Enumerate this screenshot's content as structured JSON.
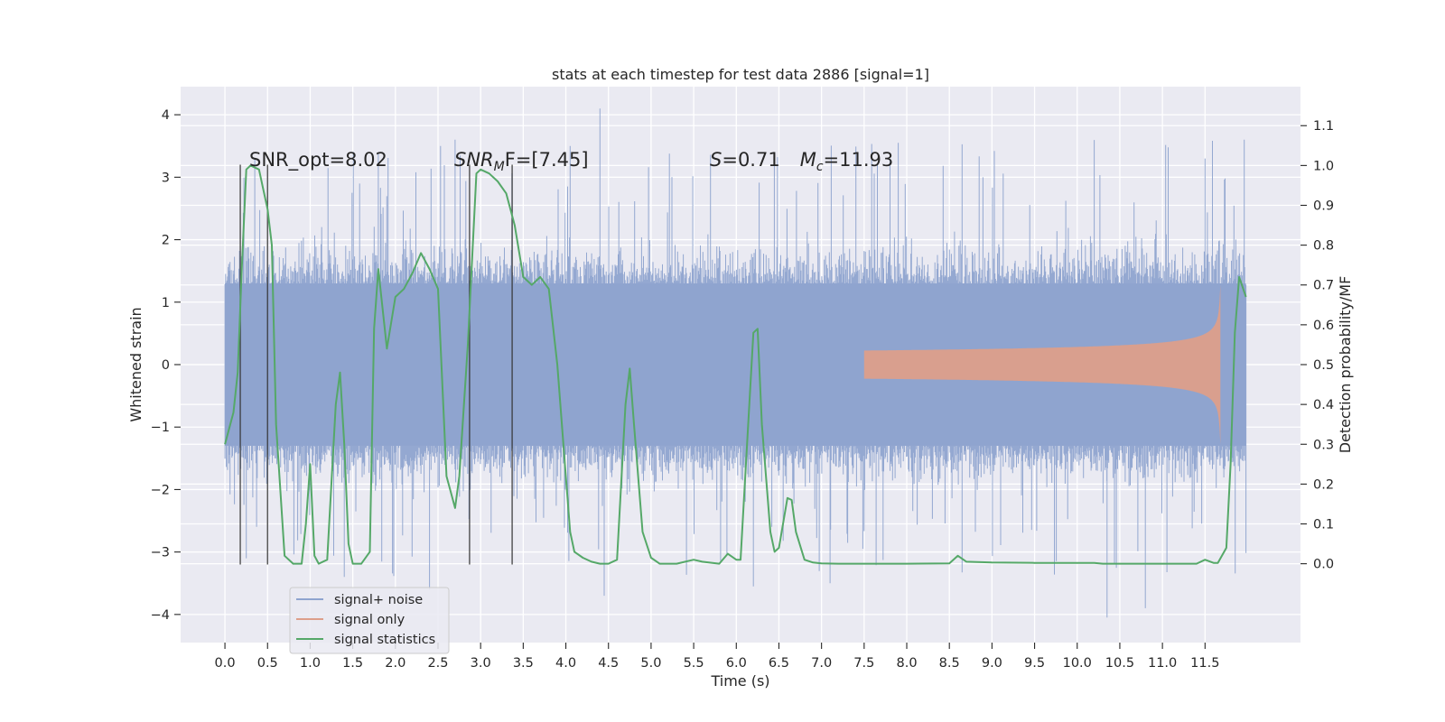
{
  "chart_data": {
    "type": "line",
    "title": "stats at each timestep for test data 2886 [signal=1]",
    "xlabel": "Time (s)",
    "ylabel": "Whitened strain",
    "y2label": "Detection probability/MF",
    "xlim": [
      -0.52,
      12.62
    ],
    "ylim": [
      -4.45,
      4.45
    ],
    "y2lim": [
      -0.198,
      1.198
    ],
    "x_ticks": [
      0.0,
      0.5,
      1.0,
      1.5,
      2.0,
      2.5,
      3.0,
      3.5,
      4.0,
      4.5,
      5.0,
      5.5,
      6.0,
      6.5,
      7.0,
      7.5,
      8.0,
      8.5,
      9.0,
      9.5,
      10.0,
      10.5,
      11.0,
      11.5
    ],
    "y_ticks": [
      4,
      3,
      2,
      1,
      0,
      -1,
      -2,
      -3,
      -4
    ],
    "y_tick_labels": [
      "4",
      "3",
      "2",
      "1",
      "0",
      "−1",
      "−2",
      "−3",
      "−4"
    ],
    "y2_ticks": [
      1.1,
      1.0,
      0.9,
      0.8,
      0.7,
      0.6,
      0.5,
      0.4,
      0.3,
      0.2,
      0.1,
      0.0
    ],
    "grid": true,
    "legend_position": "lower-left",
    "legend": [
      "signal+ noise",
      "signal only",
      "signal statistics"
    ],
    "annotations": {
      "snr_opt": "SNR_opt=8.02",
      "snr_mf_prefix": "SNR",
      "snr_mf_sub": "M",
      "snr_mf_suffix": "F=[7.45]",
      "s_sym": "S",
      "s_val": "=0.71",
      "mc_sym": "M",
      "mc_sub": "c",
      "mc_val": "=11.93"
    },
    "vertical_markers": [
      0.18,
      0.5,
      2.87,
      3.37
    ],
    "marker_range": [
      -3.2,
      3.2
    ],
    "series": [
      {
        "name": "signal+ noise",
        "color": "#8fa4cf",
        "x_range": [
          0.0,
          11.98
        ],
        "core_amplitude": 1.3,
        "typical_extent": [
          -2.0,
          2.0
        ],
        "max": 4.1,
        "min": -4.05
      },
      {
        "name": "signal only",
        "color": "#dd9f8a",
        "x_range": [
          7.5,
          11.68
        ],
        "peak_amplitude": 1.28
      },
      {
        "name": "signal statistics",
        "color": "#55a868",
        "x": [
          0.0,
          0.1,
          0.15,
          0.2,
          0.25,
          0.3,
          0.4,
          0.45,
          0.5,
          0.55,
          0.6,
          0.7,
          0.8,
          0.9,
          0.95,
          1.0,
          1.05,
          1.1,
          1.2,
          1.3,
          1.35,
          1.4,
          1.45,
          1.5,
          1.55,
          1.6,
          1.7,
          1.75,
          1.8,
          1.9,
          2.0,
          2.1,
          2.2,
          2.3,
          2.4,
          2.5,
          2.6,
          2.7,
          2.75,
          2.85,
          2.95,
          3.0,
          3.1,
          3.2,
          3.3,
          3.4,
          3.5,
          3.6,
          3.7,
          3.8,
          3.9,
          4.0,
          4.05,
          4.1,
          4.2,
          4.3,
          4.4,
          4.5,
          4.6,
          4.7,
          4.75,
          4.8,
          4.9,
          5.0,
          5.1,
          5.3,
          5.5,
          5.6,
          5.8,
          5.9,
          6.0,
          6.05,
          6.1,
          6.2,
          6.25,
          6.3,
          6.4,
          6.45,
          6.5,
          6.6,
          6.65,
          6.7,
          6.8,
          6.9,
          7.0,
          7.2,
          8.0,
          8.5,
          8.6,
          8.7,
          9.0,
          9.5,
          10.0,
          10.2,
          10.3,
          10.5,
          11.0,
          11.4,
          11.5,
          11.6,
          11.65,
          11.75,
          11.8,
          11.85,
          11.9,
          11.98
        ],
        "y": [
          0.3,
          0.38,
          0.48,
          0.75,
          0.99,
          1.0,
          0.99,
          0.94,
          0.89,
          0.8,
          0.35,
          0.02,
          0.0,
          0.0,
          0.1,
          0.25,
          0.02,
          0.0,
          0.01,
          0.4,
          0.48,
          0.3,
          0.05,
          0.0,
          0.0,
          0.0,
          0.03,
          0.59,
          0.74,
          0.54,
          0.67,
          0.69,
          0.73,
          0.78,
          0.74,
          0.69,
          0.22,
          0.14,
          0.22,
          0.55,
          0.98,
          0.99,
          0.98,
          0.96,
          0.93,
          0.85,
          0.72,
          0.7,
          0.72,
          0.69,
          0.5,
          0.22,
          0.08,
          0.03,
          0.015,
          0.005,
          0.0,
          0.0,
          0.01,
          0.4,
          0.49,
          0.35,
          0.08,
          0.015,
          0.0,
          0.0,
          0.01,
          0.005,
          0.0,
          0.025,
          0.01,
          0.01,
          0.2,
          0.58,
          0.59,
          0.35,
          0.08,
          0.03,
          0.04,
          0.165,
          0.16,
          0.08,
          0.01,
          0.003,
          0.001,
          0.0,
          0.0,
          0.001,
          0.02,
          0.005,
          0.003,
          0.002,
          0.002,
          0.002,
          0.0,
          0.0,
          0.0,
          0.0,
          0.01,
          0.002,
          0.002,
          0.04,
          0.25,
          0.58,
          0.72,
          0.67
        ]
      }
    ]
  }
}
